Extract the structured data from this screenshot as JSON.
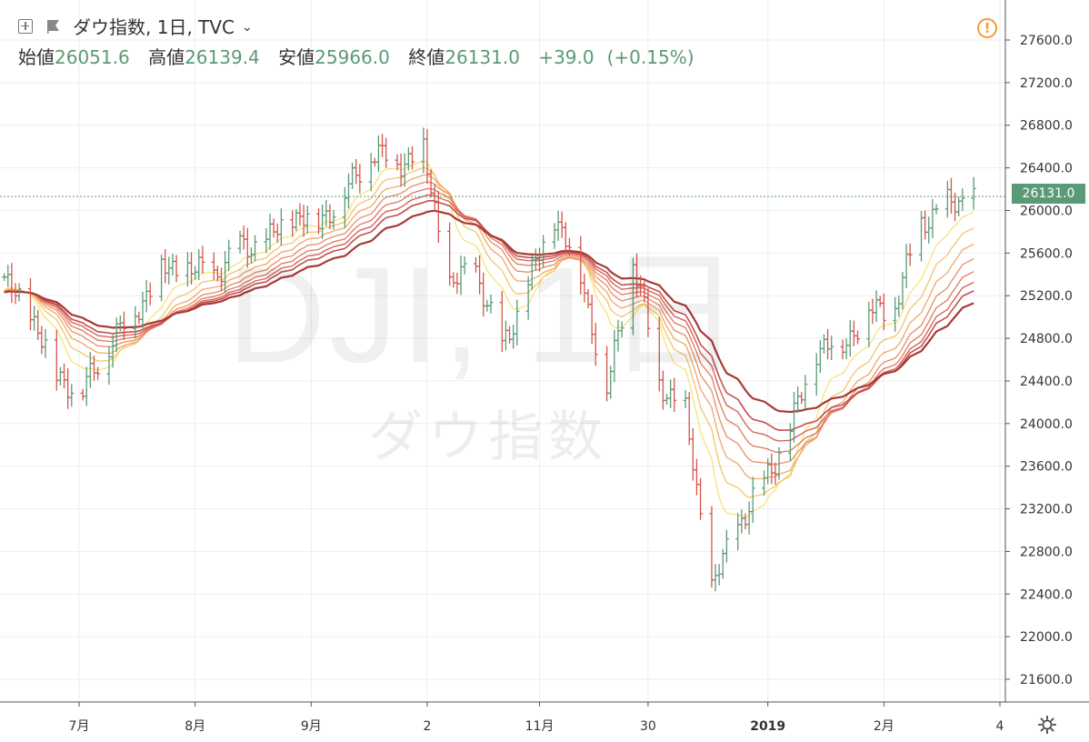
{
  "header": {
    "symbol_title": "ダウ指数, 1日, TVC",
    "ohlc": [
      {
        "label": "始値",
        "value": "26051.6"
      },
      {
        "label": "高値",
        "value": "26139.4"
      },
      {
        "label": "安値",
        "value": "25966.0"
      },
      {
        "label": "終値",
        "value": "26131.0"
      }
    ],
    "change": "+39.0",
    "change_pct": "(+0.15%)"
  },
  "watermark": {
    "symbol": "DJI, 1日",
    "name": "ダウ指数"
  },
  "last_price_label": "26131.0",
  "colors": {
    "up": "#5a9a76",
    "down": "#d4544a",
    "ribbon": [
      "#f7e37a",
      "#f5c46c",
      "#f1a76a",
      "#ea8d66",
      "#e07860",
      "#d4655a",
      "#c25150",
      "#a83a36"
    ]
  },
  "icons": [
    "plus-square-icon",
    "flag-icon",
    "chevron-down-icon",
    "alert-icon",
    "gear-icon"
  ],
  "chart_data": {
    "type": "line",
    "subtype": "ohlc-bars-with-moving-average-ribbon",
    "title": "ダウ指数, 1日, TVC",
    "yaxis": {
      "ticks": [
        21600,
        22000,
        22400,
        22800,
        23200,
        23600,
        24000,
        24400,
        24800,
        25200,
        25600,
        26000,
        26400,
        26800,
        27200,
        27600
      ],
      "tick_labels": [
        "21600.0",
        "22000.0",
        "22400.0",
        "22800.0",
        "23200.0",
        "23600.0",
        "24000.0",
        "24400.0",
        "24800.0",
        "25200.0",
        "25600.0",
        "26000.0",
        "26400.0",
        "26800.0",
        "27200.0",
        "27600.0"
      ],
      "range": [
        21450,
        27800
      ]
    },
    "xaxis": {
      "tick_labels": [
        "7月",
        "8月",
        "9月",
        "2",
        "11月",
        "30",
        "2019",
        "2月",
        "4"
      ],
      "tick_dates": [
        "2018-07-01",
        "2018-08-01",
        "2018-09-01",
        "2018-10-02",
        "2018-11-01",
        "2018-11-30",
        "2019-01-01",
        "2019-02-01",
        "2019-03-04"
      ]
    },
    "price_series": {
      "name": "ダウ指数",
      "points": [
        [
          "2018-06-11",
          25320
        ],
        [
          "2018-06-18",
          25050
        ],
        [
          "2018-06-25",
          24450
        ],
        [
          "2018-07-02",
          24300
        ],
        [
          "2018-07-09",
          24750
        ],
        [
          "2018-07-16",
          25050
        ],
        [
          "2018-07-23",
          25450
        ],
        [
          "2018-07-30",
          25450
        ],
        [
          "2018-08-06",
          25400
        ],
        [
          "2018-08-13",
          25650
        ],
        [
          "2018-08-20",
          25700
        ],
        [
          "2018-08-27",
          25950
        ],
        [
          "2018-09-03",
          25900
        ],
        [
          "2018-09-10",
          26150
        ],
        [
          "2018-09-17",
          26550
        ],
        [
          "2018-09-24",
          26450
        ],
        [
          "2018-10-01",
          26550
        ],
        [
          "2018-10-08",
          25300
        ],
        [
          "2018-10-15",
          25450
        ],
        [
          "2018-10-22",
          24700
        ],
        [
          "2018-10-29",
          25300
        ],
        [
          "2018-11-05",
          25950
        ],
        [
          "2018-11-12",
          25400
        ],
        [
          "2018-11-19",
          24300
        ],
        [
          "2018-11-26",
          25550
        ],
        [
          "2018-12-03",
          24400
        ],
        [
          "2018-12-10",
          24100
        ],
        [
          "2018-12-17",
          22450
        ],
        [
          "2018-12-24",
          23050
        ],
        [
          "2018-12-31",
          23450
        ],
        [
          "2019-01-07",
          23950
        ],
        [
          "2019-01-14",
          24700
        ],
        [
          "2019-01-21",
          24750
        ],
        [
          "2019-01-28",
          25050
        ],
        [
          "2019-02-04",
          25100
        ],
        [
          "2019-02-11",
          25900
        ],
        [
          "2019-02-18",
          26050
        ],
        [
          "2019-02-25",
          26131
        ]
      ]
    },
    "last_price": 26131.0,
    "ribbon_series_count": 8,
    "grid": true,
    "legend": "none"
  }
}
